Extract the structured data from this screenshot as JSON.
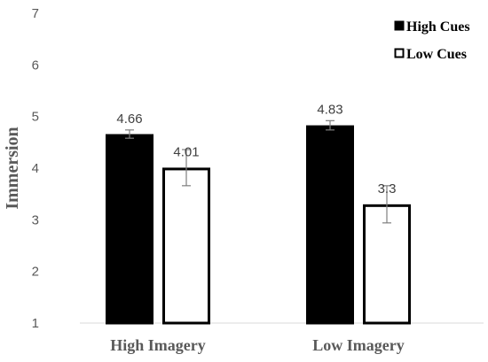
{
  "chart_data": {
    "type": "bar",
    "ylabel": "Immersion",
    "ylim": [
      1,
      7
    ],
    "yticks": [
      1,
      2,
      3,
      4,
      5,
      6,
      7
    ],
    "grid": false,
    "legend_position": "top-right",
    "categories": [
      "High Imagery",
      "Low Imagery"
    ],
    "series": [
      {
        "name": "High Cues",
        "values": [
          4.66,
          4.83
        ],
        "labels": [
          "4.66",
          "4.83"
        ],
        "error": [
          0.08,
          0.09
        ],
        "fill": "#000000",
        "stroke": "#000000"
      },
      {
        "name": "Low Cues",
        "values": [
          4.01,
          3.3
        ],
        "labels": [
          "4.01",
          "3.3"
        ],
        "error": [
          0.35,
          0.36
        ],
        "fill": "#ffffff",
        "stroke": "#000000"
      }
    ]
  }
}
